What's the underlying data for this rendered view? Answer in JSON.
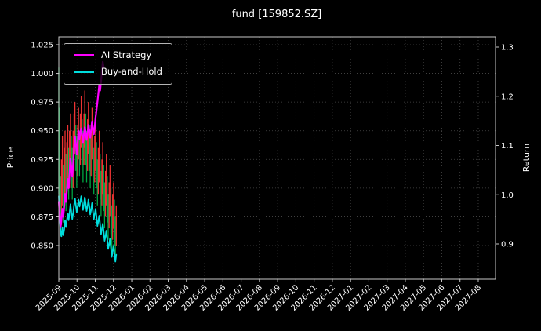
{
  "chart": {
    "title": "fund [159852.SZ]",
    "ylabel_left": "Price",
    "ylabel_right": "Return",
    "legend": {
      "items": [
        {
          "label": "AI Strategy",
          "color": "#ff00ff"
        },
        {
          "label": "Buy-and-Hold",
          "color": "#00dddd"
        }
      ]
    }
  },
  "chart_data": {
    "type": "line",
    "title": "fund [159852.SZ]",
    "background": "#000000",
    "grid": "dotted",
    "legend_position": "upper-left",
    "x_axis": {
      "tick_labels": [
        "2025-09",
        "2025-10",
        "2025-11",
        "2025-12",
        "2026-01",
        "2026-02",
        "2026-03",
        "2026-04",
        "2026-05",
        "2026-06",
        "2026-07",
        "2026-08",
        "2026-09",
        "2026-10",
        "2026-11",
        "2026-12",
        "2027-01",
        "2027-02",
        "2027-03",
        "2027-04",
        "2027-05",
        "2027-06",
        "2027-07",
        "2027-08"
      ],
      "note": "monthly ticks; plotted data occupies only 2025-09 through early 2025-12, rest of axis is empty",
      "day0_date": "2025-09-01",
      "trading_days_per_month": 20.3
    },
    "y_axis_left": {
      "label": "Price",
      "ticks": [
        0.85,
        0.875,
        0.9,
        0.925,
        0.95,
        0.975,
        1.0,
        1.025
      ],
      "lim": [
        0.82,
        1.032
      ]
    },
    "y_axis_right": {
      "label": "Return",
      "ticks": [
        0.9,
        1.0,
        1.1,
        1.2,
        1.3
      ],
      "lim": [
        0.828,
        1.321
      ]
    },
    "series": [
      {
        "name": "AI Strategy",
        "type": "line",
        "color": "#ff00ff",
        "units": "values read off left Price axis",
        "points": [
          [
            0,
            0.888
          ],
          [
            1,
            0.878
          ],
          [
            2,
            0.866
          ],
          [
            3,
            0.872
          ],
          [
            4,
            0.882
          ],
          [
            5,
            0.875
          ],
          [
            6,
            0.884
          ],
          [
            7,
            0.895
          ],
          [
            8,
            0.888
          ],
          [
            9,
            0.898
          ],
          [
            10,
            0.908
          ],
          [
            11,
            0.9
          ],
          [
            12,
            0.912
          ],
          [
            13,
            0.926
          ],
          [
            14,
            0.918
          ],
          [
            15,
            0.91
          ],
          [
            16,
            0.92
          ],
          [
            17,
            0.934
          ],
          [
            18,
            0.945
          ],
          [
            19,
            0.938
          ],
          [
            20,
            0.93
          ],
          [
            21,
            0.94
          ],
          [
            22,
            0.95
          ],
          [
            23,
            0.943
          ],
          [
            24,
            0.948
          ],
          [
            25,
            0.952
          ],
          [
            26,
            0.946
          ],
          [
            27,
            0.94
          ],
          [
            28,
            0.947
          ],
          [
            29,
            0.953
          ],
          [
            30,
            0.948
          ],
          [
            31,
            0.942
          ],
          [
            32,
            0.948
          ],
          [
            33,
            0.955
          ],
          [
            34,
            0.95
          ],
          [
            35,
            0.944
          ],
          [
            36,
            0.95
          ],
          [
            37,
            0.958
          ],
          [
            38,
            0.952
          ],
          [
            39,
            0.947
          ],
          [
            40,
            0.953
          ],
          [
            41,
            0.962
          ],
          [
            42,
            0.968
          ],
          [
            43,
            0.975
          ],
          [
            44,
            0.982
          ],
          [
            45,
            0.99
          ],
          [
            46,
            0.985
          ],
          [
            47,
            0.993
          ],
          [
            48,
            1.002
          ],
          [
            49,
            1.01
          ],
          [
            50,
            1.005
          ]
        ]
      },
      {
        "name": "Buy-and-Hold",
        "type": "line",
        "color": "#00dddd",
        "units": "values read off left Price axis",
        "points": [
          [
            0,
            0.893
          ],
          [
            1,
            0.875
          ],
          [
            2,
            0.862
          ],
          [
            3,
            0.858
          ],
          [
            4,
            0.866
          ],
          [
            5,
            0.859
          ],
          [
            6,
            0.864
          ],
          [
            7,
            0.872
          ],
          [
            8,
            0.866
          ],
          [
            9,
            0.872
          ],
          [
            10,
            0.878
          ],
          [
            11,
            0.872
          ],
          [
            12,
            0.878
          ],
          [
            13,
            0.886
          ],
          [
            14,
            0.879
          ],
          [
            15,
            0.873
          ],
          [
            16,
            0.878
          ],
          [
            17,
            0.885
          ],
          [
            18,
            0.891
          ],
          [
            19,
            0.885
          ],
          [
            20,
            0.879
          ],
          [
            21,
            0.884
          ],
          [
            22,
            0.89
          ],
          [
            23,
            0.884
          ],
          [
            24,
            0.888
          ],
          [
            25,
            0.893
          ],
          [
            26,
            0.887
          ],
          [
            27,
            0.881
          ],
          [
            28,
            0.886
          ],
          [
            29,
            0.892
          ],
          [
            30,
            0.886
          ],
          [
            31,
            0.88
          ],
          [
            32,
            0.884
          ],
          [
            33,
            0.89
          ],
          [
            34,
            0.884
          ],
          [
            35,
            0.877
          ],
          [
            36,
            0.881
          ],
          [
            37,
            0.887
          ],
          [
            38,
            0.88
          ],
          [
            39,
            0.873
          ],
          [
            40,
            0.877
          ],
          [
            41,
            0.882
          ],
          [
            42,
            0.875
          ],
          [
            43,
            0.867
          ],
          [
            44,
            0.871
          ],
          [
            45,
            0.876
          ],
          [
            46,
            0.868
          ],
          [
            47,
            0.86
          ],
          [
            48,
            0.864
          ],
          [
            49,
            0.869
          ],
          [
            50,
            0.862
          ],
          [
            51,
            0.854
          ],
          [
            52,
            0.858
          ],
          [
            53,
            0.863
          ],
          [
            54,
            0.855
          ],
          [
            55,
            0.847
          ],
          [
            56,
            0.851
          ],
          [
            57,
            0.856
          ],
          [
            58,
            0.848
          ],
          [
            59,
            0.84
          ],
          [
            60,
            0.845
          ],
          [
            61,
            0.85
          ],
          [
            62,
            0.843
          ],
          [
            63,
            0.836
          ],
          [
            64,
            0.842
          ]
        ]
      },
      {
        "name": "daily price high-low bars",
        "type": "range-bars",
        "up_color": "#ee3333",
        "down_color": "#00a844",
        "bars_format": "[trading_day, low, high, up_or_down]",
        "bars": [
          [
            0,
            0.895,
            1.005,
            "d"
          ],
          [
            1,
            0.87,
            0.97,
            "d"
          ],
          [
            2,
            0.858,
            0.91,
            "d"
          ],
          [
            3,
            0.868,
            0.925,
            "u"
          ],
          [
            4,
            0.885,
            0.945,
            "u"
          ],
          [
            5,
            0.87,
            0.92,
            "d"
          ],
          [
            6,
            0.88,
            0.935,
            "u"
          ],
          [
            7,
            0.895,
            0.95,
            "u"
          ],
          [
            8,
            0.88,
            0.93,
            "d"
          ],
          [
            9,
            0.89,
            0.94,
            "u"
          ],
          [
            10,
            0.9,
            0.955,
            "u"
          ],
          [
            11,
            0.89,
            0.935,
            "d"
          ],
          [
            12,
            0.9,
            0.95,
            "u"
          ],
          [
            13,
            0.915,
            0.965,
            "u"
          ],
          [
            14,
            0.9,
            0.945,
            "d"
          ],
          [
            15,
            0.89,
            0.935,
            "d"
          ],
          [
            16,
            0.9,
            0.95,
            "u"
          ],
          [
            17,
            0.915,
            0.965,
            "u"
          ],
          [
            18,
            0.93,
            0.975,
            "u"
          ],
          [
            19,
            0.915,
            0.955,
            "d"
          ],
          [
            20,
            0.9,
            0.945,
            "d"
          ],
          [
            21,
            0.91,
            0.955,
            "u"
          ],
          [
            22,
            0.925,
            0.97,
            "u"
          ],
          [
            23,
            0.91,
            0.95,
            "d"
          ],
          [
            24,
            0.92,
            0.965,
            "u"
          ],
          [
            25,
            0.935,
            0.98,
            "u"
          ],
          [
            26,
            0.92,
            0.96,
            "d"
          ],
          [
            27,
            0.905,
            0.95,
            "d"
          ],
          [
            28,
            0.92,
            0.965,
            "u"
          ],
          [
            29,
            0.935,
            0.985,
            "u"
          ],
          [
            30,
            0.92,
            0.965,
            "d"
          ],
          [
            31,
            0.905,
            0.95,
            "d"
          ],
          [
            32,
            0.915,
            0.96,
            "u"
          ],
          [
            33,
            0.93,
            0.975,
            "u"
          ],
          [
            34,
            0.915,
            0.955,
            "d"
          ],
          [
            35,
            0.9,
            0.945,
            "d"
          ],
          [
            36,
            0.91,
            0.955,
            "u"
          ],
          [
            37,
            0.925,
            0.97,
            "u"
          ],
          [
            38,
            0.91,
            0.95,
            "d"
          ],
          [
            39,
            0.895,
            0.935,
            "d"
          ],
          [
            40,
            0.905,
            0.945,
            "u"
          ],
          [
            41,
            0.915,
            0.96,
            "u"
          ],
          [
            42,
            0.9,
            0.94,
            "d"
          ],
          [
            43,
            0.885,
            0.925,
            "d"
          ],
          [
            44,
            0.895,
            0.935,
            "u"
          ],
          [
            45,
            0.905,
            0.95,
            "u"
          ],
          [
            46,
            0.89,
            0.93,
            "d"
          ],
          [
            47,
            0.875,
            0.915,
            "d"
          ],
          [
            48,
            0.885,
            0.925,
            "u"
          ],
          [
            49,
            0.895,
            0.94,
            "u"
          ],
          [
            50,
            0.88,
            0.92,
            "d"
          ],
          [
            51,
            0.865,
            0.905,
            "d"
          ],
          [
            52,
            0.875,
            0.915,
            "u"
          ],
          [
            53,
            0.885,
            0.93,
            "u"
          ],
          [
            54,
            0.87,
            0.91,
            "d"
          ],
          [
            55,
            0.855,
            0.895,
            "d"
          ],
          [
            56,
            0.865,
            0.905,
            "u"
          ],
          [
            57,
            0.875,
            0.92,
            "u"
          ],
          [
            58,
            0.86,
            0.9,
            "d"
          ],
          [
            59,
            0.845,
            0.885,
            "d"
          ],
          [
            60,
            0.855,
            0.895,
            "u"
          ],
          [
            61,
            0.865,
            0.905,
            "u"
          ],
          [
            62,
            0.85,
            0.89,
            "d"
          ],
          [
            63,
            0.84,
            0.875,
            "d"
          ],
          [
            64,
            0.85,
            0.885,
            "u"
          ]
        ]
      }
    ]
  }
}
